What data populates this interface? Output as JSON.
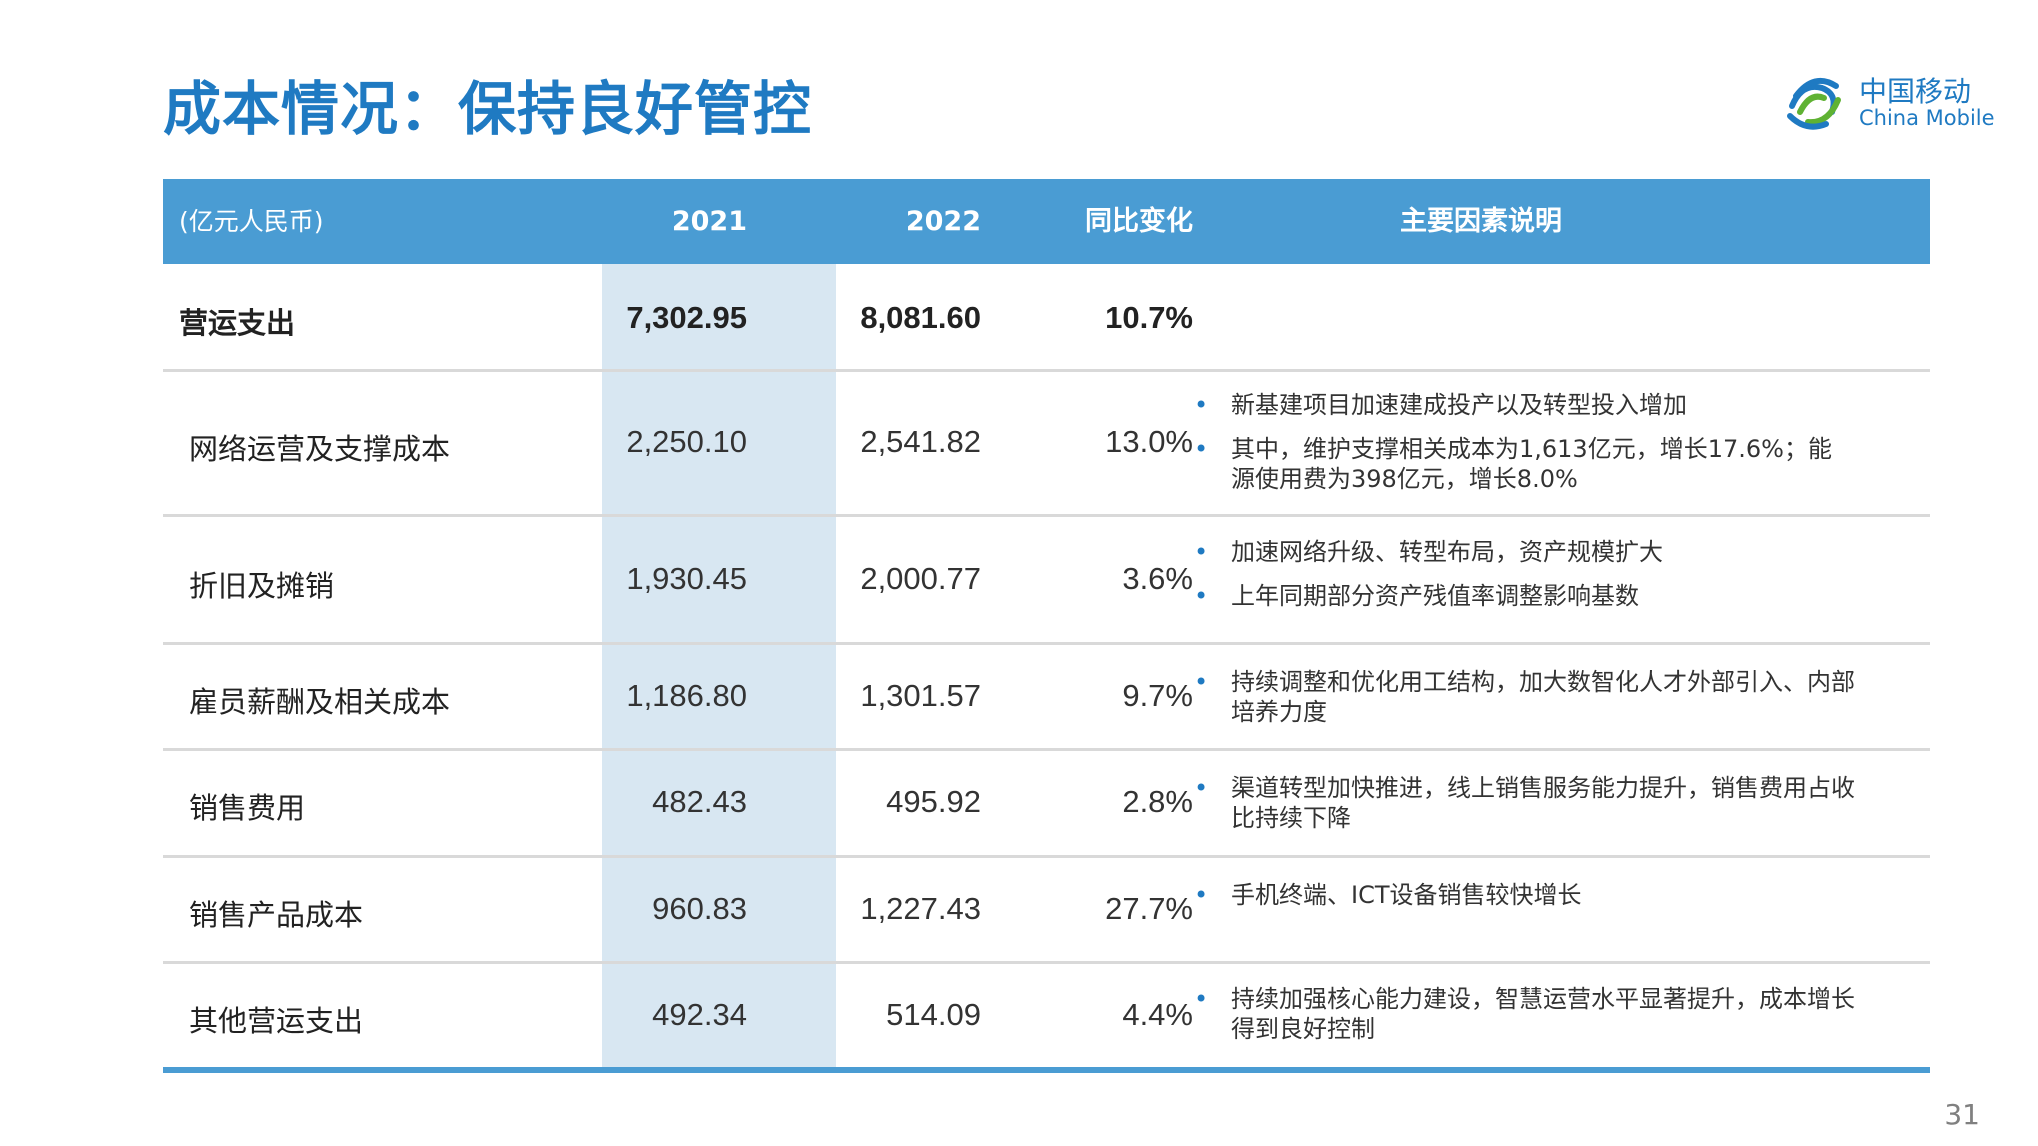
{
  "title": "成本情况：保持良好管控",
  "logo": {
    "cn": "中国移动",
    "en": "China Mobile"
  },
  "table": {
    "headers": {
      "unit": "(亿元人民币)",
      "y1": "2021",
      "y2": "2022",
      "change": "同比变化",
      "notes": "主要因素说明"
    },
    "total": {
      "name": "营运支出",
      "y1": "7,302.95",
      "y2": "8,081.60",
      "change": "10.7%"
    },
    "rows": [
      {
        "name": "网络运营及支撑成本",
        "y1": "2,250.10",
        "y2": "2,541.82",
        "change": "13.0%",
        "notes": [
          "新基建项目加速建成投产以及转型投入增加",
          "其中，维护支撑相关成本为1,613亿元，增长17.6%；能源使用费为398亿元，增长8.0%"
        ]
      },
      {
        "name": "折旧及摊销",
        "y1": "1,930.45",
        "y2": "2,000.77",
        "change": "3.6%",
        "notes": [
          "加速网络升级、转型布局，资产规模扩大",
          "上年同期部分资产残值率调整影响基数"
        ]
      },
      {
        "name": "雇员薪酬及相关成本",
        "y1": "1,186.80",
        "y2": "1,301.57",
        "change": "9.7%",
        "notes": [
          "持续调整和优化用工结构，加大数智化人才外部引入、内部培养力度"
        ]
      },
      {
        "name": "销售费用",
        "y1": "482.43",
        "y2": "495.92",
        "change": "2.8%",
        "notes": [
          "渠道转型加快推进，线上销售服务能力提升，销售费用占收比持续下降"
        ]
      },
      {
        "name": "销售产品成本",
        "y1": "960.83",
        "y2": "1,227.43",
        "change": "27.7%",
        "notes": [
          "手机终端、ICT设备销售较快增长"
        ]
      },
      {
        "name": "其他营运支出",
        "y1": "492.34",
        "y2": "514.09",
        "change": "4.4%",
        "notes": [
          "持续加强核心能力建设，智慧运营水平显著提升，成本增长得到良好控制"
        ]
      }
    ]
  },
  "page_number": "31",
  "colors": {
    "accent": "#1f7ac2",
    "header_bg": "#4a9cd3",
    "highlight_col": "#d8e7f2"
  }
}
